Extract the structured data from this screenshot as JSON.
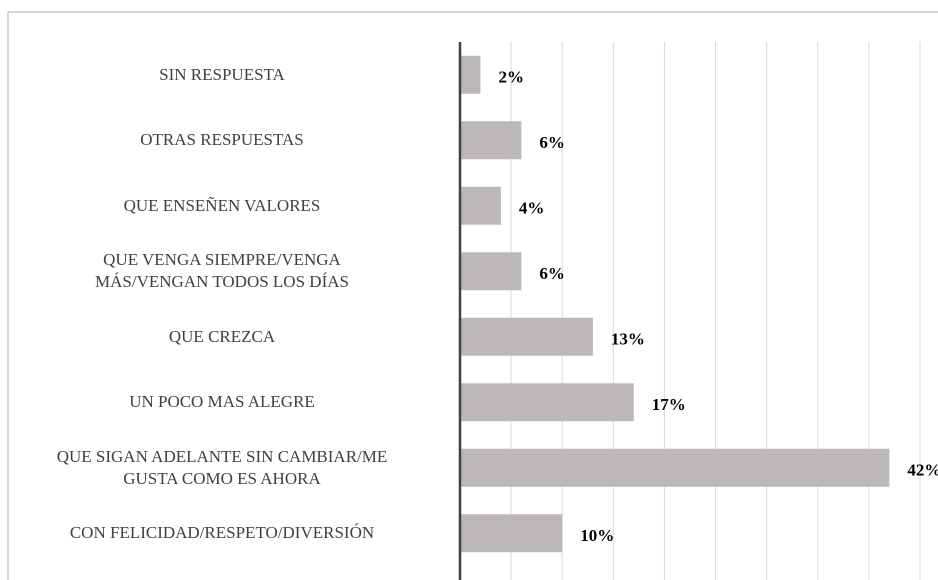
{
  "chart_data": {
    "type": "barh",
    "categories": [
      "SIN RESPUESTA",
      "OTRAS RESPUESTAS",
      "QUE ENSEÑEN VALORES",
      "QUE VENGA SIEMPRE/VENGA\nMÁS/VENGAN TODOS LOS DÍAS",
      "QUE CREZCA",
      "UN POCO MAS ALEGRE",
      "QUE SIGAN ADELANTE SIN CAMBIAR/ME\nGUSTA COMO ES AHORA",
      "CON FELICIDAD/RESPETO/DIVERSIÓN"
    ],
    "values": [
      2,
      6,
      4,
      6,
      13,
      17,
      42,
      10
    ],
    "value_labels": [
      "2%",
      "6%",
      "4%",
      "6%",
      "13%",
      "17%",
      "42%",
      "10%"
    ],
    "color": "#bcb8b7",
    "xlim": [
      0,
      45
    ],
    "xticks": [
      0,
      5,
      10,
      15,
      20,
      25,
      30,
      35,
      40,
      45
    ],
    "grid": true
  }
}
